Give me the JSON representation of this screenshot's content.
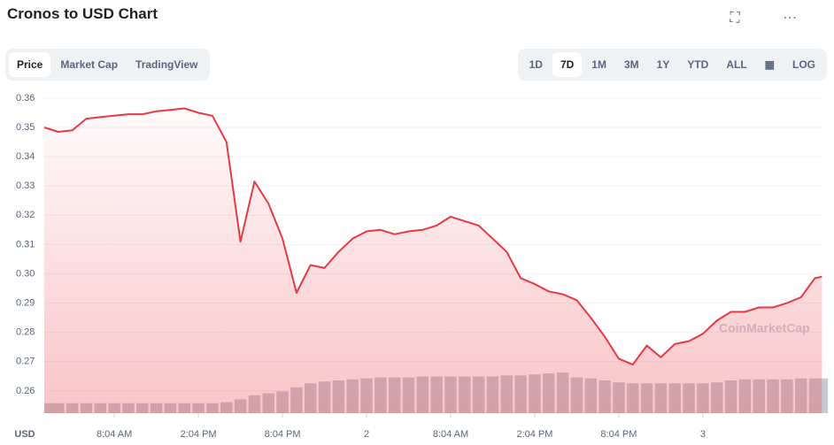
{
  "header": {
    "title": "Cronos to USD Chart",
    "view_tabs": [
      "Price",
      "Market Cap",
      "TradingView"
    ],
    "active_view": 0,
    "range_tabs": [
      "1D",
      "7D",
      "1M",
      "3M",
      "1Y",
      "YTD",
      "ALL",
      "LOG"
    ],
    "active_range": 1
  },
  "chart_data": {
    "type": "line",
    "currency_label": "USD",
    "watermark": "CoinMarketCap",
    "color": "#ea3943",
    "volume_color": "#c8ccd2",
    "x": [
      0,
      1,
      2,
      3,
      4,
      5,
      6,
      7,
      8,
      9,
      10,
      11,
      12,
      13,
      14,
      15,
      16,
      17,
      18,
      19,
      20,
      21,
      22,
      23,
      24,
      25,
      26,
      27,
      28,
      29,
      30,
      31,
      32,
      33,
      34,
      35,
      36,
      37,
      38,
      39,
      40,
      41,
      42,
      43,
      44,
      45,
      46,
      47,
      48,
      49,
      50,
      51,
      52,
      53,
      54,
      55,
      55.5
    ],
    "series": [
      {
        "name": "Price",
        "values": [
          0.35,
          0.3485,
          0.349,
          0.353,
          0.3535,
          0.354,
          0.3545,
          0.3545,
          0.3555,
          0.356,
          0.3565,
          0.355,
          0.354,
          0.345,
          0.311,
          0.3315,
          0.324,
          0.312,
          0.2935,
          0.303,
          0.302,
          0.3075,
          0.312,
          0.3145,
          0.315,
          0.3135,
          0.3145,
          0.315,
          0.3165,
          0.3195,
          0.318,
          0.3165,
          0.312,
          0.3075,
          0.2985,
          0.2965,
          0.294,
          0.293,
          0.291,
          0.285,
          0.2785,
          0.271,
          0.269,
          0.2755,
          0.2715,
          0.276,
          0.277,
          0.2795,
          0.284,
          0.287,
          0.287,
          0.2885,
          0.2885,
          0.29,
          0.292,
          0.2985,
          0.299
        ]
      }
    ],
    "volume": [
      10,
      10,
      10,
      10,
      10,
      10,
      10,
      10,
      10,
      10,
      10,
      10,
      10,
      11,
      14,
      18,
      20,
      22,
      26,
      30,
      32,
      33,
      34,
      35,
      36,
      36,
      36,
      37,
      37,
      37,
      37,
      37,
      37,
      38,
      38,
      39,
      40,
      41,
      36,
      35,
      33,
      31,
      30,
      30,
      30,
      30,
      30,
      30,
      31,
      33,
      34,
      34,
      34,
      34,
      35,
      35,
      35
    ],
    "xlim": [
      0,
      55.6
    ],
    "ylim": [
      0.2524,
      0.3633
    ],
    "xticks": [
      {
        "value": 5,
        "label": "8:04 AM"
      },
      {
        "value": 11,
        "label": "2:04 PM"
      },
      {
        "value": 17,
        "label": "8:04 PM"
      },
      {
        "value": 23,
        "label": "2"
      },
      {
        "value": 29,
        "label": "8:04 AM"
      },
      {
        "value": 35,
        "label": "2:04 PM"
      },
      {
        "value": 41,
        "label": "8:04 PM"
      },
      {
        "value": 47,
        "label": "3"
      }
    ],
    "yticks": [
      0.26,
      0.27,
      0.28,
      0.29,
      {
        "value": 0.3,
        "label": "0.30"
      },
      0.31,
      0.32,
      0.33,
      0.34,
      0.35,
      0.36
    ],
    "grid": true
  }
}
